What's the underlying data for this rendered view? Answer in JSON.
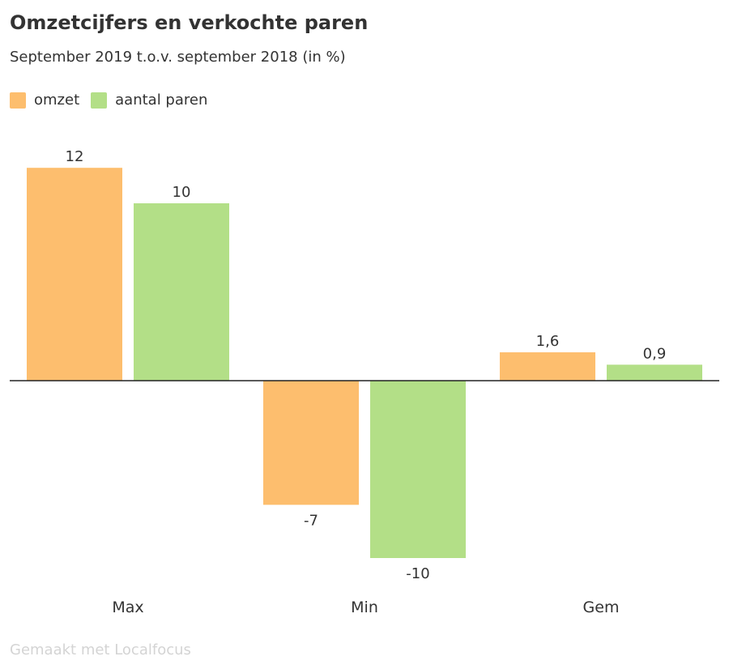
{
  "chart_data": {
    "type": "bar",
    "title": "Omzetcijfers en verkochte paren",
    "subtitle": "September 2019 t.o.v. september 2018 (in %)",
    "categories": [
      "Max",
      "Min",
      "Gem"
    ],
    "series": [
      {
        "name": "omzet",
        "color": "#fdbe6e",
        "values": [
          12,
          -7,
          1.6
        ],
        "labels": [
          "12",
          "-7",
          "1,6"
        ]
      },
      {
        "name": "aantal paren",
        "color": "#b3df87",
        "values": [
          10,
          -10,
          0.9
        ],
        "labels": [
          "10",
          "-10",
          "0,9"
        ]
      }
    ],
    "ylim": [
      -10,
      12
    ],
    "grid": false,
    "legend_position": "top-left"
  },
  "footer": {
    "text": "Gemaakt met Localfocus"
  }
}
